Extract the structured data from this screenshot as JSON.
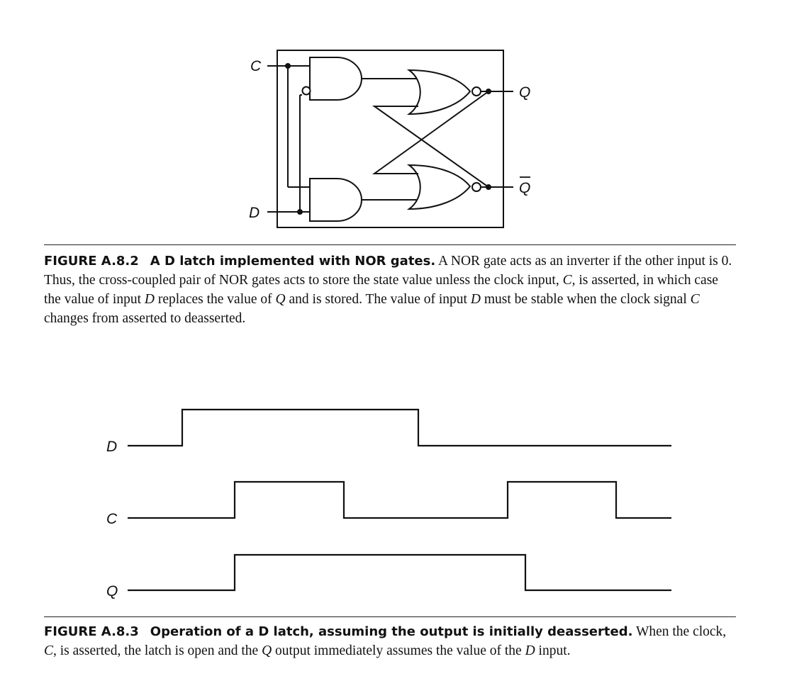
{
  "figure1": {
    "signal_c": "C",
    "signal_d": "D",
    "output_q": "Q",
    "output_q_bar": "Q",
    "caption": {
      "label": "FIGURE A.8.2",
      "title": "A D latch implemented with NOR gates.",
      "t1": " A NOR gate acts as an inverter if the other input is 0. Thus, the cross-coupled pair of NOR gates acts to store the state value unless the clock input, ",
      "v1": "C",
      "t2": ", is asserted, in which case the value of input ",
      "v2": "D",
      "t3": " replaces the value of ",
      "v3": "Q",
      "t4": " and is stored. The value of input ",
      "v4": "D",
      "t5": " must be stable when the clock signal ",
      "v5": "C",
      "t6": " changes from asserted to deasserted."
    }
  },
  "figure2": {
    "timing": {
      "signals": [
        {
          "name": "D",
          "levels": [
            0,
            1,
            1,
            1,
            1,
            0,
            0,
            0,
            0
          ]
        },
        {
          "name": "C",
          "levels": [
            0,
            0,
            1,
            1,
            0,
            0,
            1,
            1,
            0
          ]
        },
        {
          "name": "Q",
          "levels": [
            0,
            0,
            1,
            1,
            1,
            1,
            1,
            0,
            0
          ]
        }
      ]
    },
    "caption": {
      "label": "FIGURE A.8.3",
      "title": "Operation of a D latch, assuming the output is initially deasserted.",
      "t1": " When the clock, ",
      "v1": "C",
      "t2": ", is asserted, the latch is open and the ",
      "v2": "Q",
      "t3": " output immediately assumes the value of the ",
      "v3": "D",
      "t4": " input."
    }
  }
}
